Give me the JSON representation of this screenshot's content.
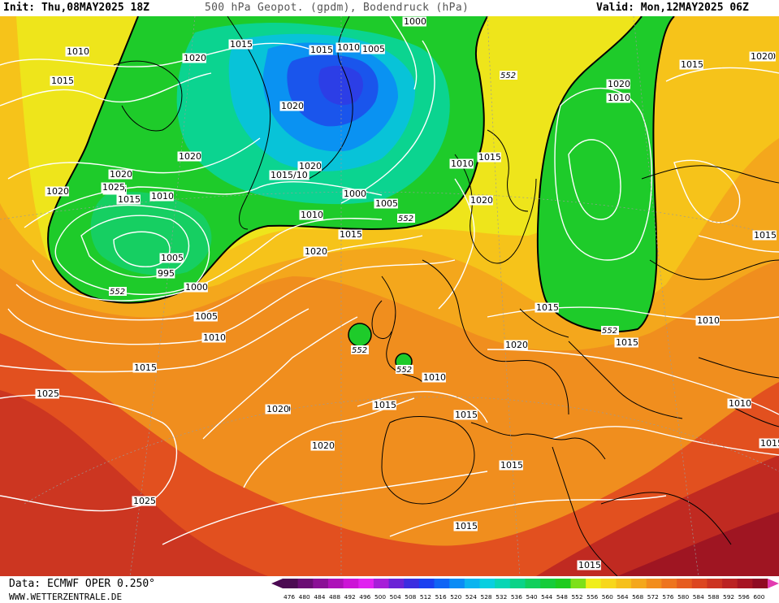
{
  "header": {
    "init": "Init: Thu,08MAY2025 18Z",
    "title": "500 hPa Geopot. (gpdm), Bodendruck (hPa)",
    "valid": "Valid: Mon,12MAY2025 06Z"
  },
  "footer": {
    "data_source": "Data: ECMWF OPER 0.250°",
    "website": "WWW.WETTERZENTRALE.DE"
  },
  "legend": {
    "values": [
      "476",
      "480",
      "484",
      "488",
      "492",
      "496",
      "500",
      "504",
      "508",
      "512",
      "516",
      "520",
      "524",
      "528",
      "532",
      "536",
      "540",
      "544",
      "548",
      "552",
      "556",
      "560",
      "564",
      "568",
      "572",
      "576",
      "580",
      "584",
      "588",
      "592",
      "596",
      "600"
    ],
    "colors": [
      "#4b0a52",
      "#6a0c74",
      "#8a0f96",
      "#ad11b8",
      "#cc14d6",
      "#e021f0",
      "#a61ed8",
      "#6a23d6",
      "#3b2de0",
      "#1a3ff0",
      "#0f64f5",
      "#0a8cf5",
      "#0ab4ef",
      "#08cfe0",
      "#07d6b4",
      "#0bd388",
      "#12cf5c",
      "#16cc3a",
      "#1ecb1e",
      "#7ee019",
      "#f0ee1a",
      "#f7d71a",
      "#f6c01a",
      "#f4a71c",
      "#f28d1d",
      "#ee741e",
      "#e65c1f",
      "#dc4620",
      "#cc3321",
      "#bb2222",
      "#a71422",
      "#8f0a22"
    ]
  },
  "pressure_labels": [
    "1010",
    "1015",
    "1020",
    "1015",
    "1015",
    "1010",
    "1005",
    "1000",
    "1015",
    "1020",
    "1015",
    "1020",
    "1020",
    "1025",
    "1015",
    "1010",
    "1005",
    "995",
    "1000",
    "1005",
    "1010",
    "1015",
    "1020",
    "1020",
    "1015/10",
    "1020",
    "1000",
    "1005",
    "1010",
    "1015",
    "1020",
    "1010",
    "1015",
    "1020",
    "1010",
    "1015",
    "1020",
    "1015",
    "1010",
    "1015",
    "1020",
    "1010",
    "1020",
    "1015",
    "1010",
    "1010",
    "1015",
    "1020",
    "1025",
    "1020",
    "1020",
    "1015",
    "1015",
    "1025",
    "1015",
    "1015",
    "1015"
  ],
  "height_labels": [
    "552",
    "552",
    "552",
    "552",
    "552",
    "552"
  ],
  "colors": {
    "land_outline": "#000000",
    "isobar": "#ffffff",
    "contour_552": "#000000"
  }
}
